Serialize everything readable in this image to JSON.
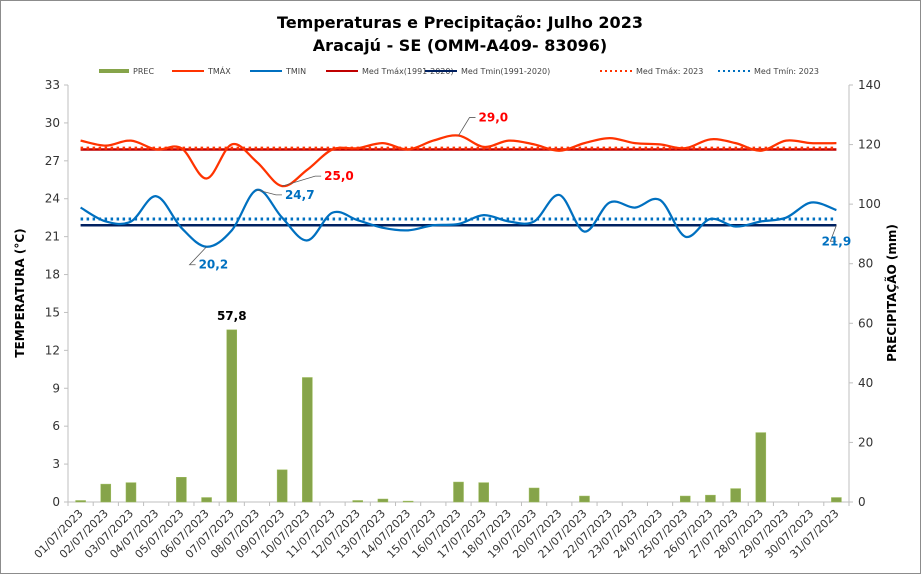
{
  "chart_data": {
    "type": "bar+line",
    "title": "Temperaturas e Precipitação: Julho 2023",
    "subtitle": "Aracajú - SE (OMM-A409- 83096)",
    "xlabel": "",
    "ylabel_left": "TEMPERATURA  (°C)",
    "ylabel_right": "PRECIPITAÇÃO  (mm)",
    "ylim_left": [
      0,
      33
    ],
    "yticks_left": [
      0,
      3,
      6,
      9,
      12,
      15,
      18,
      21,
      24,
      27,
      30,
      33
    ],
    "ylim_right": [
      0,
      140
    ],
    "yticks_right": [
      0,
      20,
      40,
      60,
      80,
      100,
      120,
      140
    ],
    "grid": false,
    "legend_position": "top",
    "categories": [
      "01/07/2023",
      "02/07/2023",
      "03/07/2023",
      "04/07/2023",
      "05/07/2023",
      "06/07/2023",
      "07/07/2023",
      "08/07/2023",
      "09/07/2023",
      "10/07/2023",
      "11/07/2023",
      "12/07/2023",
      "13/07/2023",
      "14/07/2023",
      "15/07/2023",
      "16/07/2023",
      "17/07/2023",
      "18/07/2023",
      "19/07/2023",
      "20/07/2023",
      "21/07/2023",
      "22/07/2023",
      "23/07/2023",
      "24/07/2023",
      "25/07/2023",
      "26/07/2023",
      "27/07/2023",
      "28/07/2023",
      "29/07/2023",
      "30/07/2023",
      "31/07/2023"
    ],
    "series": [
      {
        "name": "PREC",
        "type": "bar",
        "axis": "right",
        "color": "#86A44A",
        "values": [
          0.5,
          6.0,
          6.5,
          0,
          8.3,
          1.5,
          57.8,
          0,
          10.8,
          41.8,
          0,
          0.5,
          1.0,
          0.3,
          0,
          6.7,
          6.5,
          0,
          4.7,
          0,
          2.0,
          0,
          0,
          0,
          2.0,
          2.3,
          4.5,
          23.3,
          0,
          0,
          1.5
        ]
      },
      {
        "name": "TMÁX",
        "type": "line",
        "axis": "left",
        "color": "#FF3300",
        "values": [
          28.6,
          28.2,
          28.6,
          27.9,
          28.0,
          25.6,
          28.3,
          26.9,
          25.0,
          26.3,
          27.9,
          28.0,
          28.4,
          27.9,
          28.6,
          29.0,
          28.1,
          28.6,
          28.3,
          27.8,
          28.4,
          28.8,
          28.4,
          28.3,
          28.0,
          28.7,
          28.4,
          27.8,
          28.6,
          28.4,
          28.4
        ]
      },
      {
        "name": "TMIN",
        "type": "line",
        "axis": "left",
        "color": "#0070C0",
        "values": [
          23.3,
          22.2,
          22.2,
          24.2,
          21.7,
          20.2,
          21.5,
          24.7,
          22.5,
          20.7,
          22.9,
          22.3,
          21.7,
          21.5,
          21.9,
          22.0,
          22.7,
          22.2,
          22.2,
          24.3,
          21.4,
          23.7,
          23.3,
          23.9,
          21.0,
          22.4,
          21.8,
          22.2,
          22.5,
          23.7,
          23.1
        ]
      },
      {
        "name": "Med Tmáx(1991-2020)",
        "type": "hline",
        "axis": "left",
        "color": "#C00000",
        "value": 27.9
      },
      {
        "name": "Med Tmin(1991-2020)",
        "type": "hline",
        "axis": "left",
        "color": "#002060",
        "value": 21.9
      },
      {
        "name": "Med Tmáx: 2023",
        "type": "dotted-hline",
        "axis": "left",
        "color": "#FF3300",
        "value": 28.0
      },
      {
        "name": "Med Tmín: 2023",
        "type": "dotted-hline",
        "axis": "left",
        "color": "#0070C0",
        "value": 22.4
      }
    ],
    "annotations": [
      {
        "text": "57,8",
        "series": "PREC",
        "day_index": 6,
        "color": "#000000"
      },
      {
        "text": "29,0",
        "series": "TMÁX",
        "day_index": 15,
        "color": "#FF0000"
      },
      {
        "text": "25,0",
        "series": "TMÁX",
        "day_index": 8,
        "color": "#FF0000"
      },
      {
        "text": "24,7",
        "series": "TMIN",
        "day_index": 7,
        "color": "#0070C0"
      },
      {
        "text": "20,2",
        "series": "TMIN",
        "day_index": 5,
        "color": "#0070C0"
      },
      {
        "text": "21,9",
        "series": "Med Tmin(1991-2020)",
        "day_index": 30,
        "color": "#0070C0"
      }
    ]
  }
}
